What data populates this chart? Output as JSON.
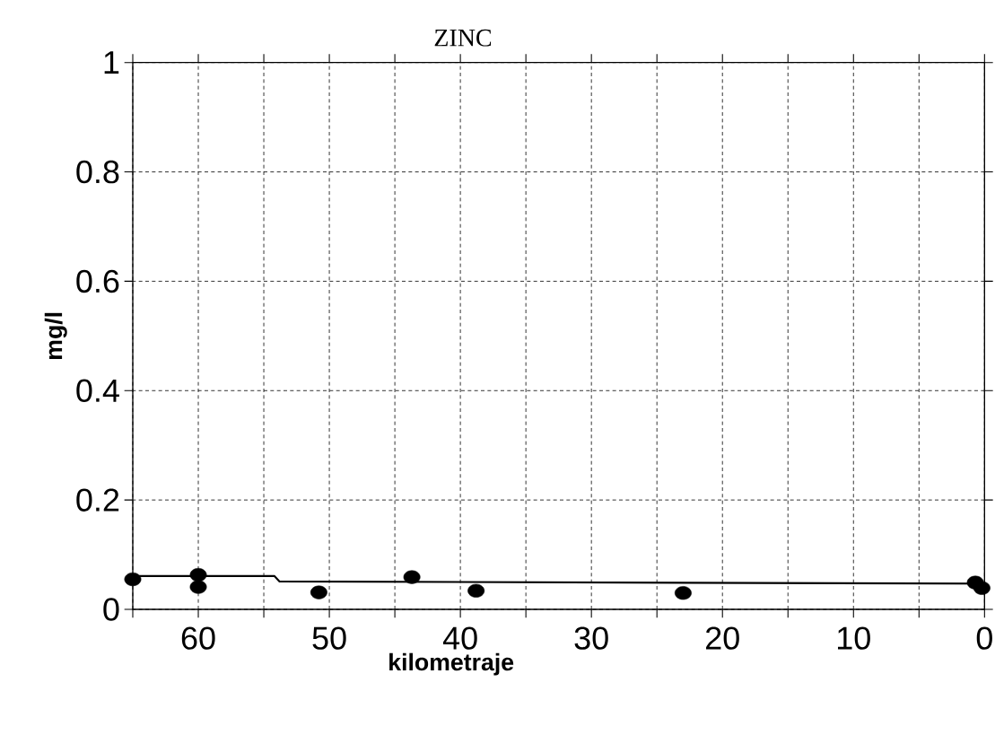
{
  "chart_data": {
    "type": "scatter",
    "title": "ZINC",
    "xlabel": "kilometraje",
    "ylabel": "mg/l",
    "series": [
      {
        "color": "#000000",
        "marker": "circle",
        "x": [
          65,
          60,
          60,
          50.8,
          43.7,
          38.8,
          23,
          0.7,
          0.2
        ],
        "values": [
          0.055,
          0.063,
          0.041,
          0.031,
          0.059,
          0.034,
          0.03,
          0.049,
          0.039
        ]
      },
      {
        "type": "line",
        "color": "#000000",
        "marker": "none",
        "line_style": "solid",
        "x": [
          65,
          54.2,
          53.8,
          0
        ],
        "values": [
          0.061,
          0.061,
          0.051,
          0.047
        ]
      }
    ],
    "xlim": [
      65,
      0
    ],
    "ylim": [
      0,
      1
    ],
    "xticks": [
      {
        "value": 65,
        "label": null
      },
      60,
      {
        "value": 55,
        "label": null
      },
      50,
      {
        "value": 45,
        "label": null
      },
      40,
      {
        "value": 35,
        "label": null
      },
      30,
      {
        "value": 25,
        "label": null
      },
      20,
      {
        "value": 15,
        "label": null
      },
      10,
      {
        "value": 5,
        "label": null
      },
      0
    ],
    "yticks": [
      0,
      0.2,
      0.4,
      0.6,
      0.8,
      1
    ],
    "grid": true
  }
}
